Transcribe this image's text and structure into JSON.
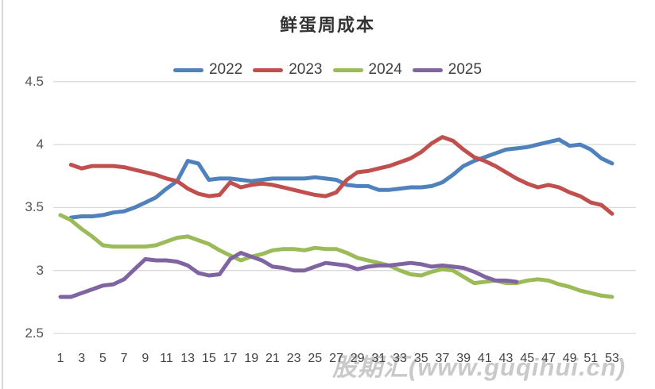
{
  "chart_data": {
    "type": "line",
    "title": "鲜蛋周成本",
    "xlabel": "",
    "ylabel": "",
    "ylim": [
      2.5,
      4.5
    ],
    "y_ticks": [
      "4.5",
      "4",
      "3.5",
      "3",
      "2.5"
    ],
    "y_tick_values": [
      4.5,
      4.0,
      3.5,
      3.0,
      2.5
    ],
    "x_ticks": [
      1,
      3,
      5,
      7,
      9,
      11,
      13,
      15,
      17,
      19,
      21,
      23,
      25,
      27,
      29,
      31,
      33,
      35,
      37,
      39,
      41,
      43,
      45,
      47,
      49,
      51,
      53
    ],
    "x_range": [
      1,
      53
    ],
    "grid": true,
    "legend_position": "top",
    "watermark": "股期汇(www.guqihui.cn)",
    "colors": {
      "grid": "#d9d9d9",
      "axis_text": "#555555",
      "title_text": "#333333"
    },
    "series": [
      {
        "name": "2022",
        "color": "#4f81bd",
        "start_week": 2,
        "values": [
          3.42,
          3.43,
          3.43,
          3.44,
          3.46,
          3.47,
          3.5,
          3.54,
          3.58,
          3.65,
          3.71,
          3.87,
          3.85,
          3.72,
          3.73,
          3.73,
          3.72,
          3.71,
          3.72,
          3.73,
          3.73,
          3.73,
          3.73,
          3.74,
          3.73,
          3.72,
          3.68,
          3.67,
          3.67,
          3.64,
          3.64,
          3.65,
          3.66,
          3.66,
          3.67,
          3.7,
          3.76,
          3.83,
          3.87,
          3.9,
          3.93,
          3.96,
          3.97,
          3.98,
          4.0,
          4.02,
          4.04,
          3.99,
          4.0,
          3.96,
          3.89,
          3.85
        ]
      },
      {
        "name": "2023",
        "color": "#c0504d",
        "start_week": 2,
        "values": [
          3.84,
          3.81,
          3.83,
          3.83,
          3.83,
          3.82,
          3.8,
          3.78,
          3.76,
          3.73,
          3.71,
          3.65,
          3.61,
          3.59,
          3.6,
          3.7,
          3.66,
          3.68,
          3.69,
          3.68,
          3.66,
          3.64,
          3.62,
          3.6,
          3.59,
          3.62,
          3.72,
          3.78,
          3.79,
          3.81,
          3.83,
          3.86,
          3.89,
          3.94,
          4.01,
          4.06,
          4.03,
          3.96,
          3.9,
          3.87,
          3.83,
          3.78,
          3.73,
          3.69,
          3.66,
          3.68,
          3.66,
          3.62,
          3.59,
          3.54,
          3.52,
          3.45
        ]
      },
      {
        "name": "2024",
        "color": "#9bbb59",
        "start_week": 1,
        "values": [
          3.44,
          3.4,
          3.33,
          3.27,
          3.2,
          3.19,
          3.19,
          3.19,
          3.19,
          3.2,
          3.23,
          3.26,
          3.27,
          3.24,
          3.21,
          3.16,
          3.12,
          3.08,
          3.11,
          3.13,
          3.16,
          3.17,
          3.17,
          3.16,
          3.18,
          3.17,
          3.17,
          3.14,
          3.1,
          3.08,
          3.06,
          3.04,
          3.0,
          2.97,
          2.96,
          2.99,
          3.01,
          3.0,
          2.95,
          2.9,
          2.91,
          2.92,
          2.9,
          2.9,
          2.92,
          2.93,
          2.92,
          2.89,
          2.87,
          2.84,
          2.82,
          2.8,
          2.79
        ]
      },
      {
        "name": "2025",
        "color": "#8064a2",
        "start_week": 1,
        "values": [
          2.79,
          2.79,
          2.82,
          2.85,
          2.88,
          2.89,
          2.93,
          3.01,
          3.09,
          3.08,
          3.08,
          3.07,
          3.04,
          2.98,
          2.96,
          2.97,
          3.09,
          3.14,
          3.11,
          3.08,
          3.03,
          3.02,
          3.0,
          3.0,
          3.03,
          3.06,
          3.05,
          3.04,
          3.01,
          3.03,
          3.04,
          3.04,
          3.05,
          3.06,
          3.05,
          3.03,
          3.04,
          3.03,
          3.02,
          2.99,
          2.95,
          2.92,
          2.92,
          2.91
        ]
      }
    ]
  }
}
